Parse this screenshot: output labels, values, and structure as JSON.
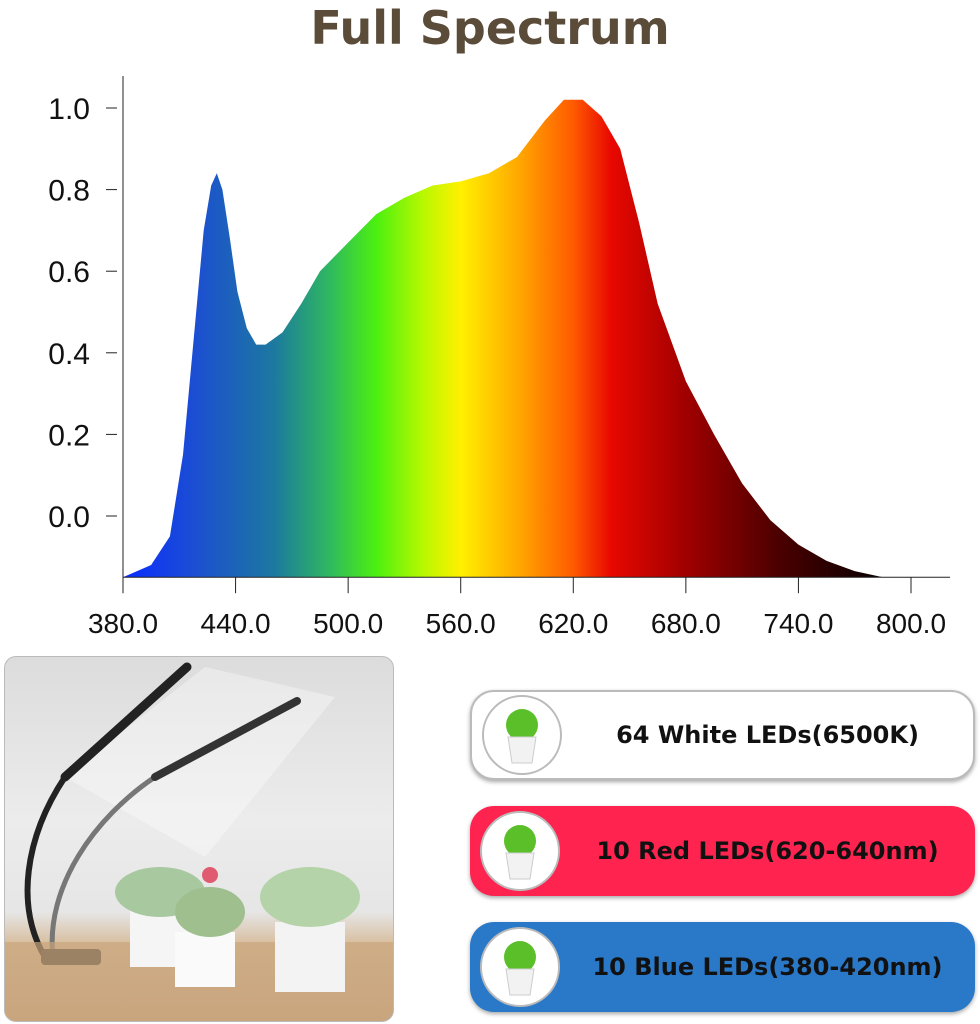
{
  "title": "Full Spectrum",
  "chart_data": {
    "type": "area",
    "title": "Full Spectrum",
    "xlabel": "",
    "ylabel": "",
    "xlim": [
      380,
      800
    ],
    "ylim": [
      -0.15,
      1.08
    ],
    "grid": false,
    "fill": "visible-spectrum gradient by wavelength",
    "x_ticks": [
      "380.0",
      "440.0",
      "500.0",
      "560.0",
      "620.0",
      "680.0",
      "740.0",
      "800.0"
    ],
    "y_ticks": [
      "0.0",
      "0.2",
      "0.4",
      "0.6",
      "0.8",
      "1.0"
    ],
    "x": [
      380,
      395,
      405,
      412,
      418,
      423,
      427,
      430,
      433,
      437,
      441,
      446,
      451,
      456,
      465,
      475,
      485,
      500,
      515,
      530,
      545,
      560,
      575,
      590,
      605,
      615,
      625,
      635,
      645,
      655,
      665,
      680,
      695,
      710,
      725,
      740,
      755,
      770,
      785,
      800
    ],
    "y": [
      -0.15,
      -0.12,
      -0.05,
      0.15,
      0.45,
      0.7,
      0.81,
      0.84,
      0.8,
      0.68,
      0.55,
      0.46,
      0.42,
      0.42,
      0.45,
      0.52,
      0.6,
      0.67,
      0.74,
      0.78,
      0.81,
      0.82,
      0.84,
      0.88,
      0.97,
      1.02,
      1.02,
      0.98,
      0.9,
      0.72,
      0.52,
      0.33,
      0.2,
      0.08,
      -0.01,
      -0.07,
      -0.11,
      -0.135,
      -0.15,
      -0.15
    ]
  },
  "legend": [
    {
      "label": "64 White LEDs(6500K)",
      "color": "#ffffff"
    },
    {
      "label": "10 Red LEDs(620-640nm)",
      "color": "#ff2350"
    },
    {
      "label": "10 Blue LEDs(380-420nm)",
      "color": "#2a78c8"
    }
  ]
}
